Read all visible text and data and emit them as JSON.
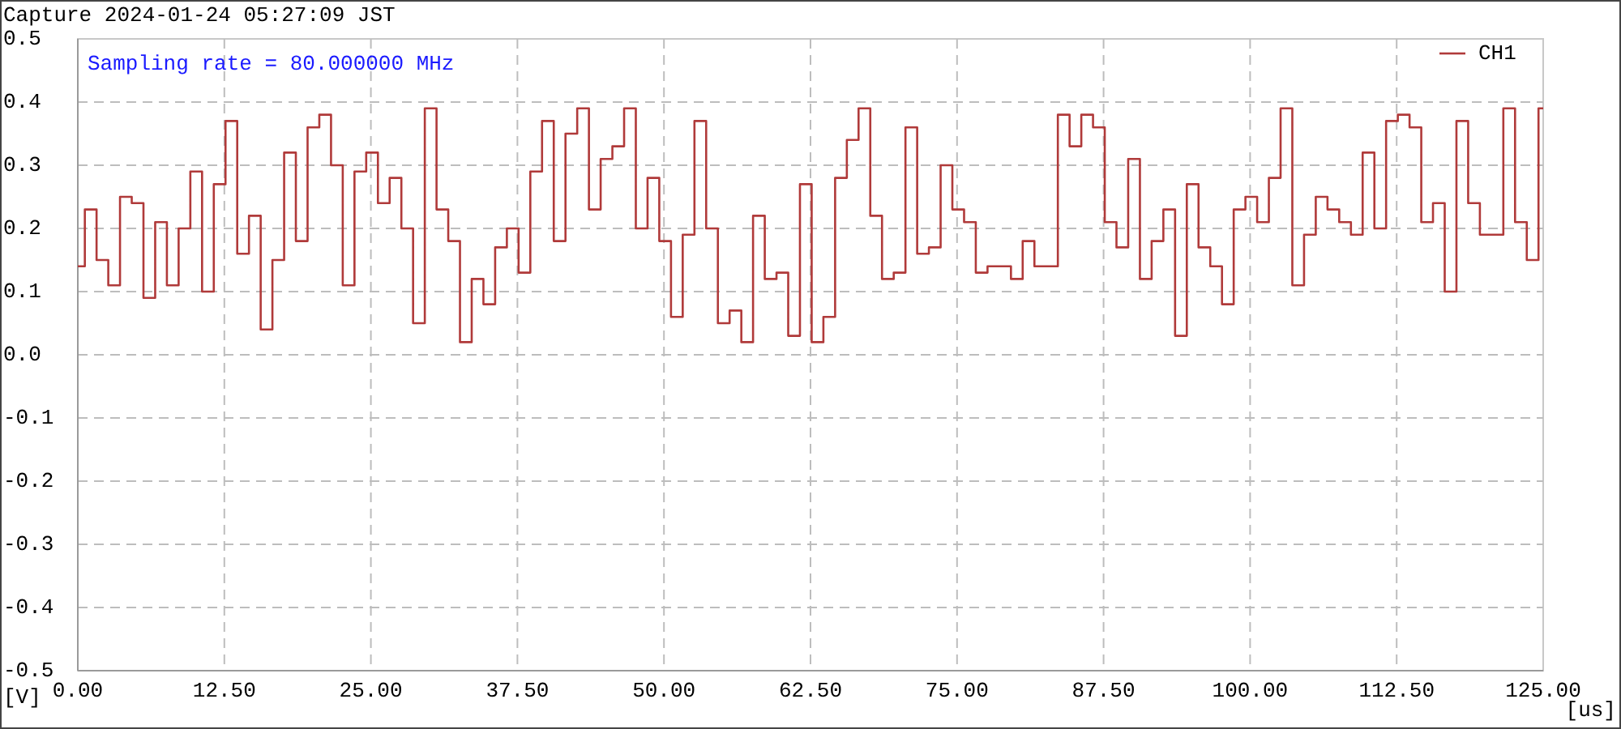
{
  "chart_data": {
    "type": "step",
    "title": "Capture 2024-01-24 05:27:09 JST",
    "xlabel": "[us]",
    "ylabel": "[V]",
    "annotations": [
      "Sampling rate = 80.000000 MHz"
    ],
    "x": [
      0,
      0.6,
      1.6,
      2.6,
      3.6,
      4.6,
      5.6,
      6.6,
      7.6,
      8.6,
      9.6,
      10.6,
      11.6,
      12.6,
      13.6,
      14.6,
      15.6,
      16.6,
      17.6,
      18.6,
      19.6,
      20.6,
      21.6,
      22.6,
      23.6,
      24.6,
      25.6,
      26.6,
      27.6,
      28.6,
      29.6,
      30.6,
      31.6,
      32.6,
      33.6,
      34.6,
      35.6,
      36.6,
      37.6,
      38.6,
      39.6,
      40.6,
      41.6,
      42.6,
      43.6,
      44.6,
      45.6,
      46.6,
      47.6,
      48.6,
      49.6,
      50.6,
      51.6,
      52.6,
      53.6,
      54.6,
      55.6,
      56.6,
      57.6,
      58.6,
      59.6,
      60.6,
      61.6,
      62.6,
      63.6,
      64.6,
      65.6,
      66.6,
      67.6,
      68.6,
      69.6,
      70.6,
      71.6,
      72.6,
      73.6,
      74.6,
      75.6,
      76.6,
      77.6,
      78.6,
      79.6,
      80.6,
      81.6,
      82.6,
      83.6,
      84.6,
      85.6,
      86.6,
      87.6,
      88.6,
      89.6,
      90.6,
      91.6,
      92.6,
      93.6,
      94.6,
      95.6,
      96.6,
      97.6,
      98.6,
      99.6,
      100.6,
      101.6,
      102.6,
      103.6,
      104.6,
      105.6,
      106.6,
      107.6,
      108.6,
      109.6,
      110.6,
      111.6,
      112.6,
      113.6,
      114.6,
      115.6,
      116.6,
      117.6,
      118.6,
      119.6,
      120.6,
      121.6,
      122.6,
      123.6,
      124.6,
      125
    ],
    "series": [
      {
        "name": "CH1",
        "color": "#b03a3a",
        "values": [
          0.14,
          0.23,
          0.15,
          0.11,
          0.25,
          0.24,
          0.09,
          0.21,
          0.11,
          0.2,
          0.29,
          0.1,
          0.27,
          0.37,
          0.16,
          0.22,
          0.04,
          0.15,
          0.32,
          0.18,
          0.36,
          0.38,
          0.3,
          0.11,
          0.29,
          0.32,
          0.24,
          0.28,
          0.2,
          0.05,
          0.39,
          0.23,
          0.18,
          0.02,
          0.12,
          0.08,
          0.17,
          0.2,
          0.13,
          0.29,
          0.37,
          0.18,
          0.35,
          0.39,
          0.23,
          0.31,
          0.33,
          0.39,
          0.2,
          0.28,
          0.18,
          0.06,
          0.19,
          0.37,
          0.2,
          0.05,
          0.07,
          0.02,
          0.22,
          0.12,
          0.13,
          0.03,
          0.27,
          0.02,
          0.06,
          0.28,
          0.34,
          0.39,
          0.22,
          0.12,
          0.13,
          0.36,
          0.16,
          0.17,
          0.3,
          0.23,
          0.21,
          0.13,
          0.14,
          0.14,
          0.12,
          0.18,
          0.14,
          0.14,
          0.38,
          0.33,
          0.38,
          0.36,
          0.21,
          0.17,
          0.31,
          0.12,
          0.18,
          0.23,
          0.03,
          0.27,
          0.17,
          0.14,
          0.08,
          0.23,
          0.25,
          0.21,
          0.28,
          0.39,
          0.11,
          0.19,
          0.25,
          0.23,
          0.21,
          0.19,
          0.32,
          0.2,
          0.37,
          0.38,
          0.36,
          0.21,
          0.24,
          0.1,
          0.37,
          0.24,
          0.19,
          0.19,
          0.39,
          0.21,
          0.15,
          0.39,
          0.39
        ]
      }
    ],
    "xlim": [
      0,
      125
    ],
    "ylim": [
      -0.5,
      0.5
    ],
    "xticks": [
      {
        "value": 0,
        "label": "0.00"
      },
      {
        "value": 12.5,
        "label": "12.50"
      },
      {
        "value": 25,
        "label": "25.00"
      },
      {
        "value": 37.5,
        "label": "37.50"
      },
      {
        "value": 50,
        "label": "50.00"
      },
      {
        "value": 62.5,
        "label": "62.50"
      },
      {
        "value": 75,
        "label": "75.00"
      },
      {
        "value": 87.5,
        "label": "87.50"
      },
      {
        "value": 100,
        "label": "100.00"
      },
      {
        "value": 112.5,
        "label": "112.50"
      },
      {
        "value": 125,
        "label": "125.00"
      }
    ],
    "yticks": [
      0.5,
      0.4,
      0.3,
      0.2,
      0.1,
      {
        "value": 0,
        "label": "0.0"
      },
      -0.1,
      -0.2,
      -0.3,
      -0.4,
      -0.5
    ],
    "grid": true,
    "legend": "top right",
    "line_style": "solid"
  }
}
